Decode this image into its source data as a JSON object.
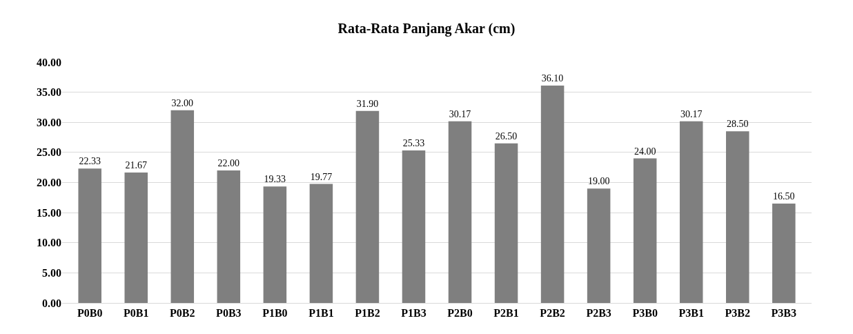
{
  "chart_data": {
    "type": "bar",
    "title": "Rata-Rata Panjang Akar (cm)",
    "categories": [
      "P0B0",
      "P0B1",
      "P0B2",
      "P0B3",
      "P1B0",
      "P1B1",
      "P1B2",
      "P1B3",
      "P2B0",
      "P2B1",
      "P2B2",
      "P2B3",
      "P3B0",
      "P3B1",
      "P3B2",
      "P3B3"
    ],
    "values": [
      22.33,
      21.67,
      32.0,
      22.0,
      19.33,
      19.77,
      31.9,
      25.33,
      30.17,
      26.5,
      36.1,
      19.0,
      24.0,
      30.17,
      28.5,
      16.5
    ],
    "value_labels": [
      "22.33",
      "21.67",
      "32.00",
      "22.00",
      "19.33",
      "19.77",
      "31.90",
      "25.33",
      "30.17",
      "26.50",
      "36.10",
      "19.00",
      "24.00",
      "30.17",
      "28.50",
      "16.50"
    ],
    "color": "#7f7f7f",
    "ylim": [
      0,
      40
    ],
    "yticks": [
      {
        "value": 0,
        "label": "0.00"
      },
      {
        "value": 5,
        "label": "5.00"
      },
      {
        "value": 10,
        "label": "10.00"
      },
      {
        "value": 15,
        "label": "15.00"
      },
      {
        "value": 20,
        "label": "20.00"
      },
      {
        "value": 25,
        "label": "25.00"
      },
      {
        "value": 30,
        "label": "30.00"
      },
      {
        "value": 35,
        "label": "35.00"
      },
      {
        "value": 40,
        "label": "40.00"
      }
    ],
    "grid": "y"
  }
}
